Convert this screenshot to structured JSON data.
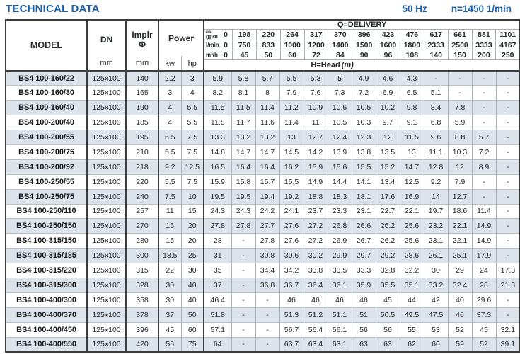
{
  "page_title": "TECHNICAL DATA",
  "frequency": "50 Hz",
  "rotation_speed": "n=1450 1/min",
  "colors": {
    "accent_blue": "#1a5fa8",
    "row_shade": "#dce3ea",
    "border_dark": "#3c3c3c",
    "border_light": "#a9b0b8"
  },
  "table": {
    "headers": {
      "model": "MODEL",
      "dn": "DN",
      "dn_unit": "mm",
      "impeller_abbr": "Implr",
      "impeller_symbol": "Φ",
      "impeller_unit": "mm",
      "power": "Power",
      "kw": "kw",
      "hp": "hp",
      "delivery_title": "Q=DELIVERY",
      "head_label": "H=Head",
      "head_unit": "(m)"
    },
    "delivery_unit_rows": [
      {
        "label_small": "us",
        "label": "gpm",
        "values": [
          "0",
          "198",
          "220",
          "264",
          "317",
          "370",
          "396",
          "423",
          "476",
          "617",
          "661",
          "881",
          "1101"
        ]
      },
      {
        "label_small": "",
        "label": "l/min",
        "values": [
          "0",
          "750",
          "833",
          "1000",
          "1200",
          "1400",
          "1500",
          "1600",
          "1800",
          "2333",
          "2500",
          "3333",
          "4167"
        ]
      },
      {
        "label_small": "",
        "label": "m³/h",
        "values": [
          "0",
          "45",
          "50",
          "60",
          "72",
          "84",
          "90",
          "96",
          "108",
          "140",
          "150",
          "200",
          "250"
        ]
      }
    ],
    "rows": [
      {
        "model": "BS4 100-160/22",
        "dn": "125x100",
        "impeller": "140",
        "kw": "2.2",
        "hp": "3",
        "head": [
          "5.9",
          "5.8",
          "5.7",
          "5.5",
          "5.3",
          "5",
          "4.9",
          "4.6",
          "4.3",
          "-",
          "-",
          "-",
          "-"
        ]
      },
      {
        "model": "BS4 100-160/30",
        "dn": "125x100",
        "impeller": "165",
        "kw": "3",
        "hp": "4",
        "head": [
          "8.2",
          "8.1",
          "8",
          "7.9",
          "7.6",
          "7.3",
          "7.2",
          "6.9",
          "6.5",
          "5.1",
          "-",
          "-",
          "-"
        ]
      },
      {
        "model": "BS4 100-160/40",
        "dn": "125x100",
        "impeller": "190",
        "kw": "4",
        "hp": "5.5",
        "head": [
          "11.5",
          "11.5",
          "11.4",
          "11.2",
          "10.9",
          "10.6",
          "10.5",
          "10.2",
          "9.8",
          "8.4",
          "7.8",
          "-",
          "-"
        ]
      },
      {
        "model": "BS4 100-200/40",
        "dn": "125x100",
        "impeller": "185",
        "kw": "4",
        "hp": "5.5",
        "head": [
          "11.8",
          "11.7",
          "11.6",
          "11.4",
          "11",
          "10.5",
          "10.3",
          "9.7",
          "9.1",
          "6.8",
          "5.9",
          "-",
          "-"
        ]
      },
      {
        "model": "BS4 100-200/55",
        "dn": "125x100",
        "impeller": "195",
        "kw": "5.5",
        "hp": "7.5",
        "head": [
          "13.3",
          "13.2",
          "13.2",
          "13",
          "12.7",
          "12.4",
          "12.3",
          "12",
          "11.5",
          "9.6",
          "8.8",
          "5.7",
          "-"
        ]
      },
      {
        "model": "BS4 100-200/75",
        "dn": "125x100",
        "impeller": "210",
        "kw": "5.5",
        "hp": "7.5",
        "head": [
          "14.8",
          "14.7",
          "14.7",
          "14.5",
          "14.2",
          "13.9",
          "13.8",
          "13.5",
          "13",
          "11.1",
          "10.3",
          "7.2",
          "-"
        ]
      },
      {
        "model": "BS4 100-200/92",
        "dn": "125x100",
        "impeller": "218",
        "kw": "9.2",
        "hp": "12.5",
        "head": [
          "16.5",
          "16.4",
          "16.4",
          "16.2",
          "15.9",
          "15.6",
          "15.5",
          "15.2",
          "14.7",
          "12.8",
          "12",
          "8.9",
          "-"
        ]
      },
      {
        "model": "BS4 100-250/55",
        "dn": "125x100",
        "impeller": "220",
        "kw": "5.5",
        "hp": "7.5",
        "head": [
          "15.9",
          "15.8",
          "15.7",
          "15.5",
          "14.9",
          "14.4",
          "14.1",
          "13.4",
          "12.5",
          "9.2",
          "7.9",
          "-",
          "-"
        ]
      },
      {
        "model": "BS4 100-250/75",
        "dn": "125x100",
        "impeller": "240",
        "kw": "7.5",
        "hp": "10",
        "head": [
          "19.5",
          "19.5",
          "19.4",
          "19.2",
          "18.8",
          "18.3",
          "18.1",
          "17.6",
          "16.9",
          "14",
          "12.7",
          "-",
          "-"
        ]
      },
      {
        "model": "BS4 100-250/110",
        "dn": "125x100",
        "impeller": "257",
        "kw": "11",
        "hp": "15",
        "head": [
          "24.3",
          "24.3",
          "24.2",
          "24.1",
          "23.7",
          "23.3",
          "23.1",
          "22.7",
          "22.1",
          "19.7",
          "18.6",
          "11.4",
          "-"
        ]
      },
      {
        "model": "BS4 100-250/150",
        "dn": "125x100",
        "impeller": "270",
        "kw": "15",
        "hp": "20",
        "head": [
          "27.8",
          "27.8",
          "27.7",
          "27.6",
          "27.2",
          "26.8",
          "26.6",
          "26.2",
          "25.6",
          "23.2",
          "22.1",
          "14.9",
          "-"
        ]
      },
      {
        "model": "BS4 100-315/150",
        "dn": "125x100",
        "impeller": "280",
        "kw": "15",
        "hp": "20",
        "head": [
          "28",
          "-",
          "27.8",
          "27.6",
          "27.2",
          "26.9",
          "26.7",
          "26.2",
          "25.6",
          "23.1",
          "22.1",
          "14.9",
          "-"
        ]
      },
      {
        "model": "BS4 100-315/185",
        "dn": "125x100",
        "impeller": "300",
        "kw": "18.5",
        "hp": "25",
        "head": [
          "31",
          "-",
          "30.8",
          "30.6",
          "30.2",
          "29.9",
          "29.7",
          "29.2",
          "28.6",
          "26.1",
          "25.1",
          "17.9",
          "-"
        ]
      },
      {
        "model": "BS4 100-315/220",
        "dn": "125x100",
        "impeller": "315",
        "kw": "22",
        "hp": "30",
        "head": [
          "35",
          "-",
          "34.4",
          "34.2",
          "33.8",
          "33.5",
          "33.3",
          "32.8",
          "32.2",
          "30",
          "29",
          "24",
          "17.3"
        ]
      },
      {
        "model": "BS4 100-315/300",
        "dn": "125x100",
        "impeller": "328",
        "kw": "30",
        "hp": "40",
        "head": [
          "37",
          "-",
          "36.8",
          "36.7",
          "36.4",
          "36.1",
          "35.9",
          "35.5",
          "35.1",
          "33.2",
          "32.4",
          "28",
          "21.3"
        ]
      },
      {
        "model": "BS4 100-400/300",
        "dn": "125x100",
        "impeller": "358",
        "kw": "30",
        "hp": "40",
        "head": [
          "46.4",
          "-",
          "-",
          "46",
          "46",
          "46",
          "46",
          "45",
          "44",
          "42",
          "40",
          "29.6",
          "-"
        ]
      },
      {
        "model": "BS4 100-400/370",
        "dn": "125x100",
        "impeller": "378",
        "kw": "37",
        "hp": "50",
        "head": [
          "51.8",
          "-",
          "-",
          "51.3",
          "51.2",
          "51.1",
          "51",
          "50.5",
          "49.5",
          "47.5",
          "46",
          "37.3",
          "-"
        ]
      },
      {
        "model": "BS4 100-400/450",
        "dn": "125x100",
        "impeller": "396",
        "kw": "45",
        "hp": "60",
        "head": [
          "57.1",
          "-",
          "-",
          "56.7",
          "56.4",
          "56.1",
          "56",
          "56",
          "55",
          "53",
          "52",
          "45",
          "32.1"
        ]
      },
      {
        "model": "BS4 100-400/550",
        "dn": "125x100",
        "impeller": "420",
        "kw": "55",
        "hp": "75",
        "head": [
          "64",
          "-",
          "-",
          "63.7",
          "63.4",
          "63.1",
          "63",
          "63",
          "62",
          "60",
          "59",
          "52",
          "39.1"
        ]
      }
    ]
  }
}
